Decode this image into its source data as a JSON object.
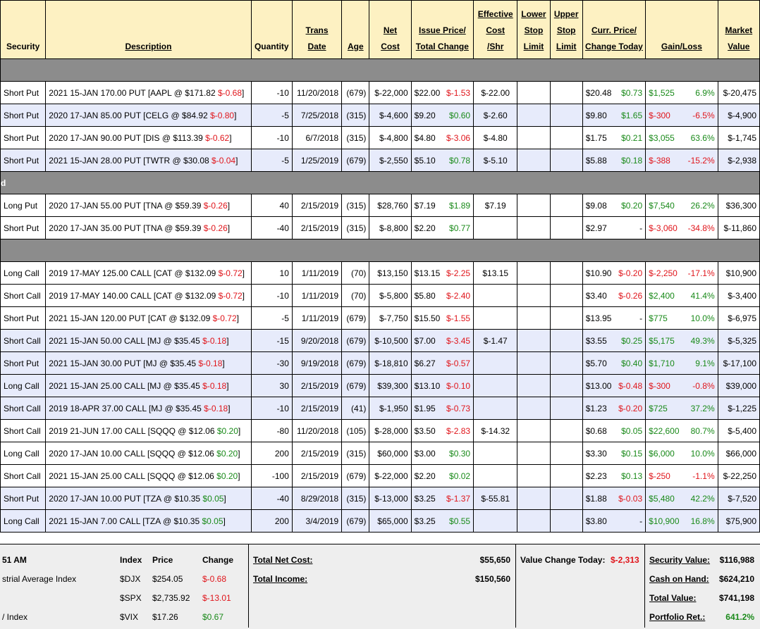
{
  "header": {
    "security": "Security",
    "description": "Description",
    "quantity": "Quantity",
    "trans_date_1": "Trans",
    "trans_date_2": "Date",
    "age": "Age",
    "net_cost_1": "Net",
    "net_cost_2": "Cost",
    "issue_1": "Issue Price/",
    "issue_2": "Total Change",
    "eff_1": "Effective",
    "eff_2": "Cost",
    "eff_3": "/Shr",
    "lower_1": "Lower",
    "lower_2": "Stop",
    "lower_3": "Limit",
    "upper_1": "Upper",
    "upper_2": "Stop",
    "upper_3": "Limit",
    "curr_1": "Curr. Price/",
    "curr_2": "Change Today",
    "gainloss": "Gain/Loss",
    "mv_1": "Market",
    "mv_2": "Value"
  },
  "group_labels": {
    "g2": "d"
  },
  "rows": [
    {
      "sec": "Short Put",
      "desc": "2021 15-JAN 170.00 PUT [AAPL @ $171.82 ",
      "dchg": "$-0.68",
      "dend": "]",
      "qty": "-10",
      "date": "11/20/2018",
      "age": "(679)",
      "net": "$-22,000",
      "issue": "$22.00",
      "tchg": "$-1.53",
      "eff": "$-22.00",
      "curr": "$20.48",
      "ctd": "$0.73",
      "gl": "$1,525",
      "glp": "6.9%",
      "mv": "$-20,475"
    },
    {
      "sec": "Short Put",
      "desc": "2020 17-JAN 85.00 PUT [CELG @ $84.92 ",
      "dchg": "$-0.80",
      "dend": "]",
      "qty": "-5",
      "date": "7/25/2018",
      "age": "(315)",
      "net": "$-4,600",
      "issue": "$9.20",
      "tchg": "$0.60",
      "eff": "$-2.60",
      "curr": "$9.80",
      "ctd": "$1.65",
      "gl": "$-300",
      "glp": "-6.5%",
      "mv": "$-4,900"
    },
    {
      "sec": "Short Put",
      "desc": "2020 17-JAN 90.00 PUT [DIS @ $113.39 ",
      "dchg": "$-0.62",
      "dend": "]",
      "qty": "-10",
      "date": "6/7/2018",
      "age": "(315)",
      "net": "$-4,800",
      "issue": "$4.80",
      "tchg": "$-3.06",
      "eff": "$-4.80",
      "curr": "$1.75",
      "ctd": "$0.21",
      "gl": "$3,055",
      "glp": "63.6%",
      "mv": "$-1,745"
    },
    {
      "sec": "Short Put",
      "desc": "2021 15-JAN 28.00 PUT [TWTR @ $30.08 ",
      "dchg": "$-0.04",
      "dend": "]",
      "qty": "-5",
      "date": "1/25/2019",
      "age": "(679)",
      "net": "$-2,550",
      "issue": "$5.10",
      "tchg": "$0.78",
      "eff": "$-5.10",
      "curr": "$5.88",
      "ctd": "$0.18",
      "gl": "$-388",
      "glp": "-15.2%",
      "mv": "$-2,938"
    },
    {
      "sec": "Long Put",
      "desc": "2020 17-JAN 55.00 PUT [TNA @ $59.39 ",
      "dchg": "$-0.26",
      "dend": "]",
      "qty": "40",
      "date": "2/15/2019",
      "age": "(315)",
      "net": "$28,760",
      "issue": "$7.19",
      "tchg": "$1.89",
      "eff": "$7.19",
      "curr": "$9.08",
      "ctd": "$0.20",
      "gl": "$7,540",
      "glp": "26.2%",
      "mv": "$36,300"
    },
    {
      "sec": "Short Put",
      "desc": "2020 17-JAN 35.00 PUT [TNA @ $59.39 ",
      "dchg": "$-0.26",
      "dend": "]",
      "qty": "-40",
      "date": "2/15/2019",
      "age": "(315)",
      "net": "$-8,800",
      "issue": "$2.20",
      "tchg": "$0.77",
      "eff": "",
      "curr": "$2.97",
      "ctd": "-",
      "gl": "$-3,060",
      "glp": "-34.8%",
      "mv": "$-11,860"
    },
    {
      "sec": "Long Call",
      "desc": "2019 17-MAY 125.00 CALL [CAT @ $132.09 ",
      "dchg": "$-0.72",
      "dend": "]",
      "qty": "10",
      "date": "1/11/2019",
      "age": "(70)",
      "net": "$13,150",
      "issue": "$13.15",
      "tchg": "$-2.25",
      "eff": "$13.15",
      "curr": "$10.90",
      "ctd": "$-0.20",
      "gl": "$-2,250",
      "glp": "-17.1%",
      "mv": "$10,900"
    },
    {
      "sec": "Short Call",
      "desc": "2019 17-MAY 140.00 CALL [CAT @ $132.09 ",
      "dchg": "$-0.72",
      "dend": "]",
      "qty": "-10",
      "date": "1/11/2019",
      "age": "(70)",
      "net": "$-5,800",
      "issue": "$5.80",
      "tchg": "$-2.40",
      "eff": "",
      "curr": "$3.40",
      "ctd": "$-0.26",
      "gl": "$2,400",
      "glp": "41.4%",
      "mv": "$-3,400"
    },
    {
      "sec": "Short Put",
      "desc": "2021 15-JAN 120.00 PUT [CAT @ $132.09 ",
      "dchg": "$-0.72",
      "dend": "]",
      "qty": "-5",
      "date": "1/11/2019",
      "age": "(679)",
      "net": "$-7,750",
      "issue": "$15.50",
      "tchg": "$-1.55",
      "eff": "",
      "curr": "$13.95",
      "ctd": "-",
      "gl": "$775",
      "glp": "10.0%",
      "mv": "$-6,975"
    },
    {
      "sec": "Short Call",
      "desc": "2021 15-JAN 50.00 CALL [MJ @ $35.45 ",
      "dchg": "$-0.18",
      "dend": "]",
      "qty": "-15",
      "date": "9/20/2018",
      "age": "(679)",
      "net": "$-10,500",
      "issue": "$7.00",
      "tchg": "$-3.45",
      "eff": "$-1.47",
      "curr": "$3.55",
      "ctd": "$0.25",
      "gl": "$5,175",
      "glp": "49.3%",
      "mv": "$-5,325"
    },
    {
      "sec": "Short Put",
      "desc": "2021 15-JAN 30.00 PUT [MJ @ $35.45 ",
      "dchg": "$-0.18",
      "dend": "]",
      "qty": "-30",
      "date": "9/19/2018",
      "age": "(679)",
      "net": "$-18,810",
      "issue": "$6.27",
      "tchg": "$-0.57",
      "eff": "",
      "curr": "$5.70",
      "ctd": "$0.40",
      "gl": "$1,710",
      "glp": "9.1%",
      "mv": "$-17,100"
    },
    {
      "sec": "Long Call",
      "desc": "2021 15-JAN 25.00 CALL [MJ @ $35.45 ",
      "dchg": "$-0.18",
      "dend": "]",
      "qty": "30",
      "date": "2/15/2019",
      "age": "(679)",
      "net": "$39,300",
      "issue": "$13.10",
      "tchg": "$-0.10",
      "eff": "",
      "curr": "$13.00",
      "ctd": "$-0.48",
      "gl": "$-300",
      "glp": "-0.8%",
      "mv": "$39,000"
    },
    {
      "sec": "Short Call",
      "desc": "2019 18-APR 37.00 CALL [MJ @ $35.45 ",
      "dchg": "$-0.18",
      "dend": "]",
      "qty": "-10",
      "date": "2/15/2019",
      "age": "(41)",
      "net": "$-1,950",
      "issue": "$1.95",
      "tchg": "$-0.73",
      "eff": "",
      "curr": "$1.23",
      "ctd": "$-0.20",
      "gl": "$725",
      "glp": "37.2%",
      "mv": "$-1,225"
    },
    {
      "sec": "Short Call",
      "desc": "2019 21-JUN 17.00 CALL [SQQQ @ $12.06 ",
      "dchg": "$0.20",
      "dend": "]",
      "qty": "-80",
      "date": "11/20/2018",
      "age": "(105)",
      "net": "$-28,000",
      "issue": "$3.50",
      "tchg": "$-2.83",
      "eff": "$-14.32",
      "curr": "$0.68",
      "ctd": "$0.05",
      "gl": "$22,600",
      "glp": "80.7%",
      "mv": "$-5,400"
    },
    {
      "sec": "Long Call",
      "desc": "2020 17-JAN 10.00 CALL [SQQQ @ $12.06 ",
      "dchg": "$0.20",
      "dend": "]",
      "qty": "200",
      "date": "2/15/2019",
      "age": "(315)",
      "net": "$60,000",
      "issue": "$3.00",
      "tchg": "$0.30",
      "eff": "",
      "curr": "$3.30",
      "ctd": "$0.15",
      "gl": "$6,000",
      "glp": "10.0%",
      "mv": "$66,000"
    },
    {
      "sec": "Short Call",
      "desc": "2021 15-JAN 25.00 CALL [SQQQ @ $12.06 ",
      "dchg": "$0.20",
      "dend": "]",
      "qty": "-100",
      "date": "2/15/2019",
      "age": "(679)",
      "net": "$-22,000",
      "issue": "$2.20",
      "tchg": "$0.02",
      "eff": "",
      "curr": "$2.23",
      "ctd": "$0.13",
      "gl": "$-250",
      "glp": "-1.1%",
      "mv": "$-22,250"
    },
    {
      "sec": "Short Put",
      "desc": "2020 17-JAN 10.00 PUT [TZA @ $10.35 ",
      "dchg": "$0.05",
      "dend": "]",
      "qty": "-40",
      "date": "8/29/2018",
      "age": "(315)",
      "net": "$-13,000",
      "issue": "$3.25",
      "tchg": "$-1.37",
      "eff": "$-55.81",
      "curr": "$1.88",
      "ctd": "$-0.03",
      "gl": "$5,480",
      "glp": "42.2%",
      "mv": "$-7,520"
    },
    {
      "sec": "Long Call",
      "desc": "2021 15-JAN 7.00 CALL [TZA @ $10.35 ",
      "dchg": "$0.05",
      "dend": "]",
      "qty": "200",
      "date": "3/4/2019",
      "age": "(679)",
      "net": "$65,000",
      "issue": "$3.25",
      "tchg": "$0.55",
      "eff": "",
      "curr": "$3.80",
      "ctd": "-",
      "gl": "$10,900",
      "glp": "16.8%",
      "mv": "$75,900"
    }
  ],
  "footer": {
    "time": "51 AM",
    "idx_hdr": "Index",
    "price_hdr": "Price",
    "change_hdr": "Change",
    "indices": [
      {
        "name": "strial Average Index",
        "sym": "$DJX",
        "price": "$254.05",
        "chg": "$-0.68"
      },
      {
        "name": "",
        "sym": "$SPX",
        "price": "$2,735.92",
        "chg": "$-13.01"
      },
      {
        "name": "/ Index",
        "sym": "$VIX",
        "price": "$17.26",
        "chg": "$0.67"
      }
    ],
    "total_net_cost_label": "Total Net Cost:",
    "total_net_cost": "$55,650",
    "total_income_label": "Total Income:",
    "total_income": "$150,560",
    "value_change_label": "Value Change Today:",
    "value_change": "$-2,313",
    "security_value_label": "Security Value:",
    "security_value": "$116,988",
    "cash_label": "Cash on Hand:",
    "cash": "$624,210",
    "total_value_label": "Total Value:",
    "total_value": "$741,198",
    "portfolio_ret_label": "Portfolio Ret.:",
    "portfolio_ret": "641.2%"
  },
  "colors": {
    "header_bg": "#fdf1c2",
    "alt_row_bg": "#e7ebfb",
    "separator_bg": "#8c8c8c",
    "negative": "#e0151b",
    "positive": "#1a8a1a"
  }
}
